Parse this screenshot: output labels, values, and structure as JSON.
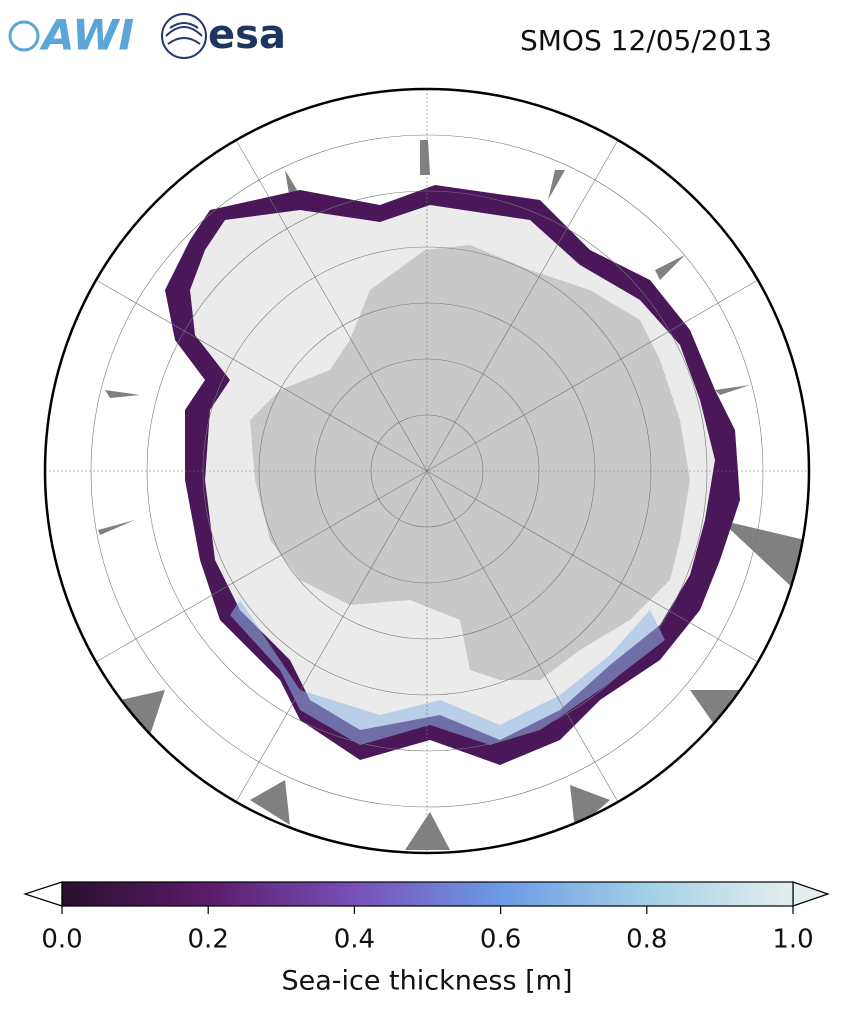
{
  "header": {
    "logos": [
      "AWI",
      "esa"
    ],
    "title": "SMOS 12/05/2013"
  },
  "colorbar": {
    "label": "Sea-ice thickness [m]",
    "lim": [
      0,
      1
    ],
    "ticks": [
      {
        "value": 0,
        "label": "0.0"
      },
      {
        "value": 0.2,
        "label": "0.2"
      },
      {
        "value": 0.4,
        "label": "0.4"
      },
      {
        "value": 0.6,
        "label": "0.6"
      },
      {
        "value": 0.8,
        "label": "0.8"
      },
      {
        "value": 1,
        "label": "1.0"
      }
    ]
  }
}
